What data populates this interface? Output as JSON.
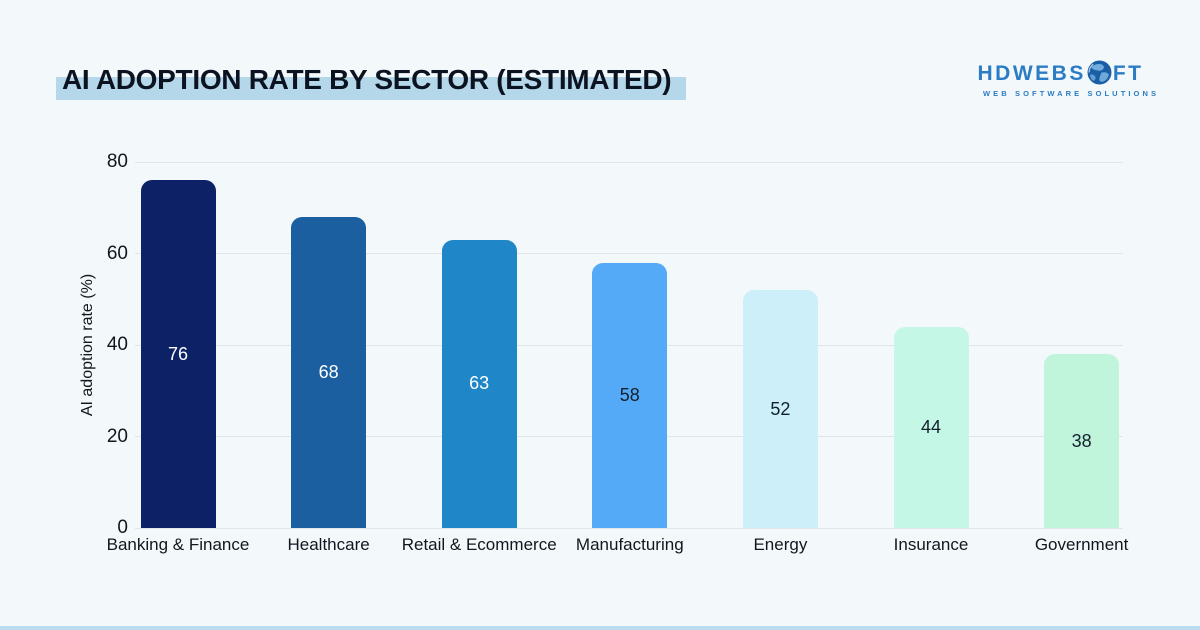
{
  "page": {
    "background": "#f3f8fb",
    "bottom_strip_color": "#b9dcee"
  },
  "header": {
    "title": "AI ADOPTION RATE BY SECTOR (ESTIMATED)",
    "title_highlight_color": "#b4d8e9",
    "logo": {
      "name": "HDWEBSOFT",
      "text_before_globe": "HDWEBS",
      "text_after_globe": "FT",
      "tagline": "WEB SOFTWARE SOLUTIONS",
      "brand_color": "#2b7cc4",
      "globe_color": "#1a5fa5",
      "globe_land_color": "#7db6e3"
    }
  },
  "chart_data": {
    "type": "bar",
    "title": "AI ADOPTION RATE BY SECTOR (ESTIMATED)",
    "categories": [
      "Banking & Finance",
      "Healthcare",
      "Retail & Ecommerce",
      "Manufacturing",
      "Energy",
      "Insurance",
      "Government"
    ],
    "values": [
      76,
      68,
      63,
      58,
      52,
      44,
      38
    ],
    "bar_colors": [
      "#0d2167",
      "#1b5fa0",
      "#1f86c8",
      "#55aaf8",
      "#cdeffa",
      "#c5f7e6",
      "#c0f5dc"
    ],
    "value_label_colors": [
      "#ffffff",
      "#ffffff",
      "#ffffff",
      "#12202e",
      "#12202e",
      "#12202e",
      "#12202e"
    ],
    "xlabel": "",
    "ylabel": "AI adoption rate (%)",
    "yticks": [
      0,
      20,
      40,
      60,
      80
    ],
    "ylim": [
      0,
      80
    ],
    "grid": true,
    "legend": false,
    "value_labels_position": "center-inside"
  }
}
